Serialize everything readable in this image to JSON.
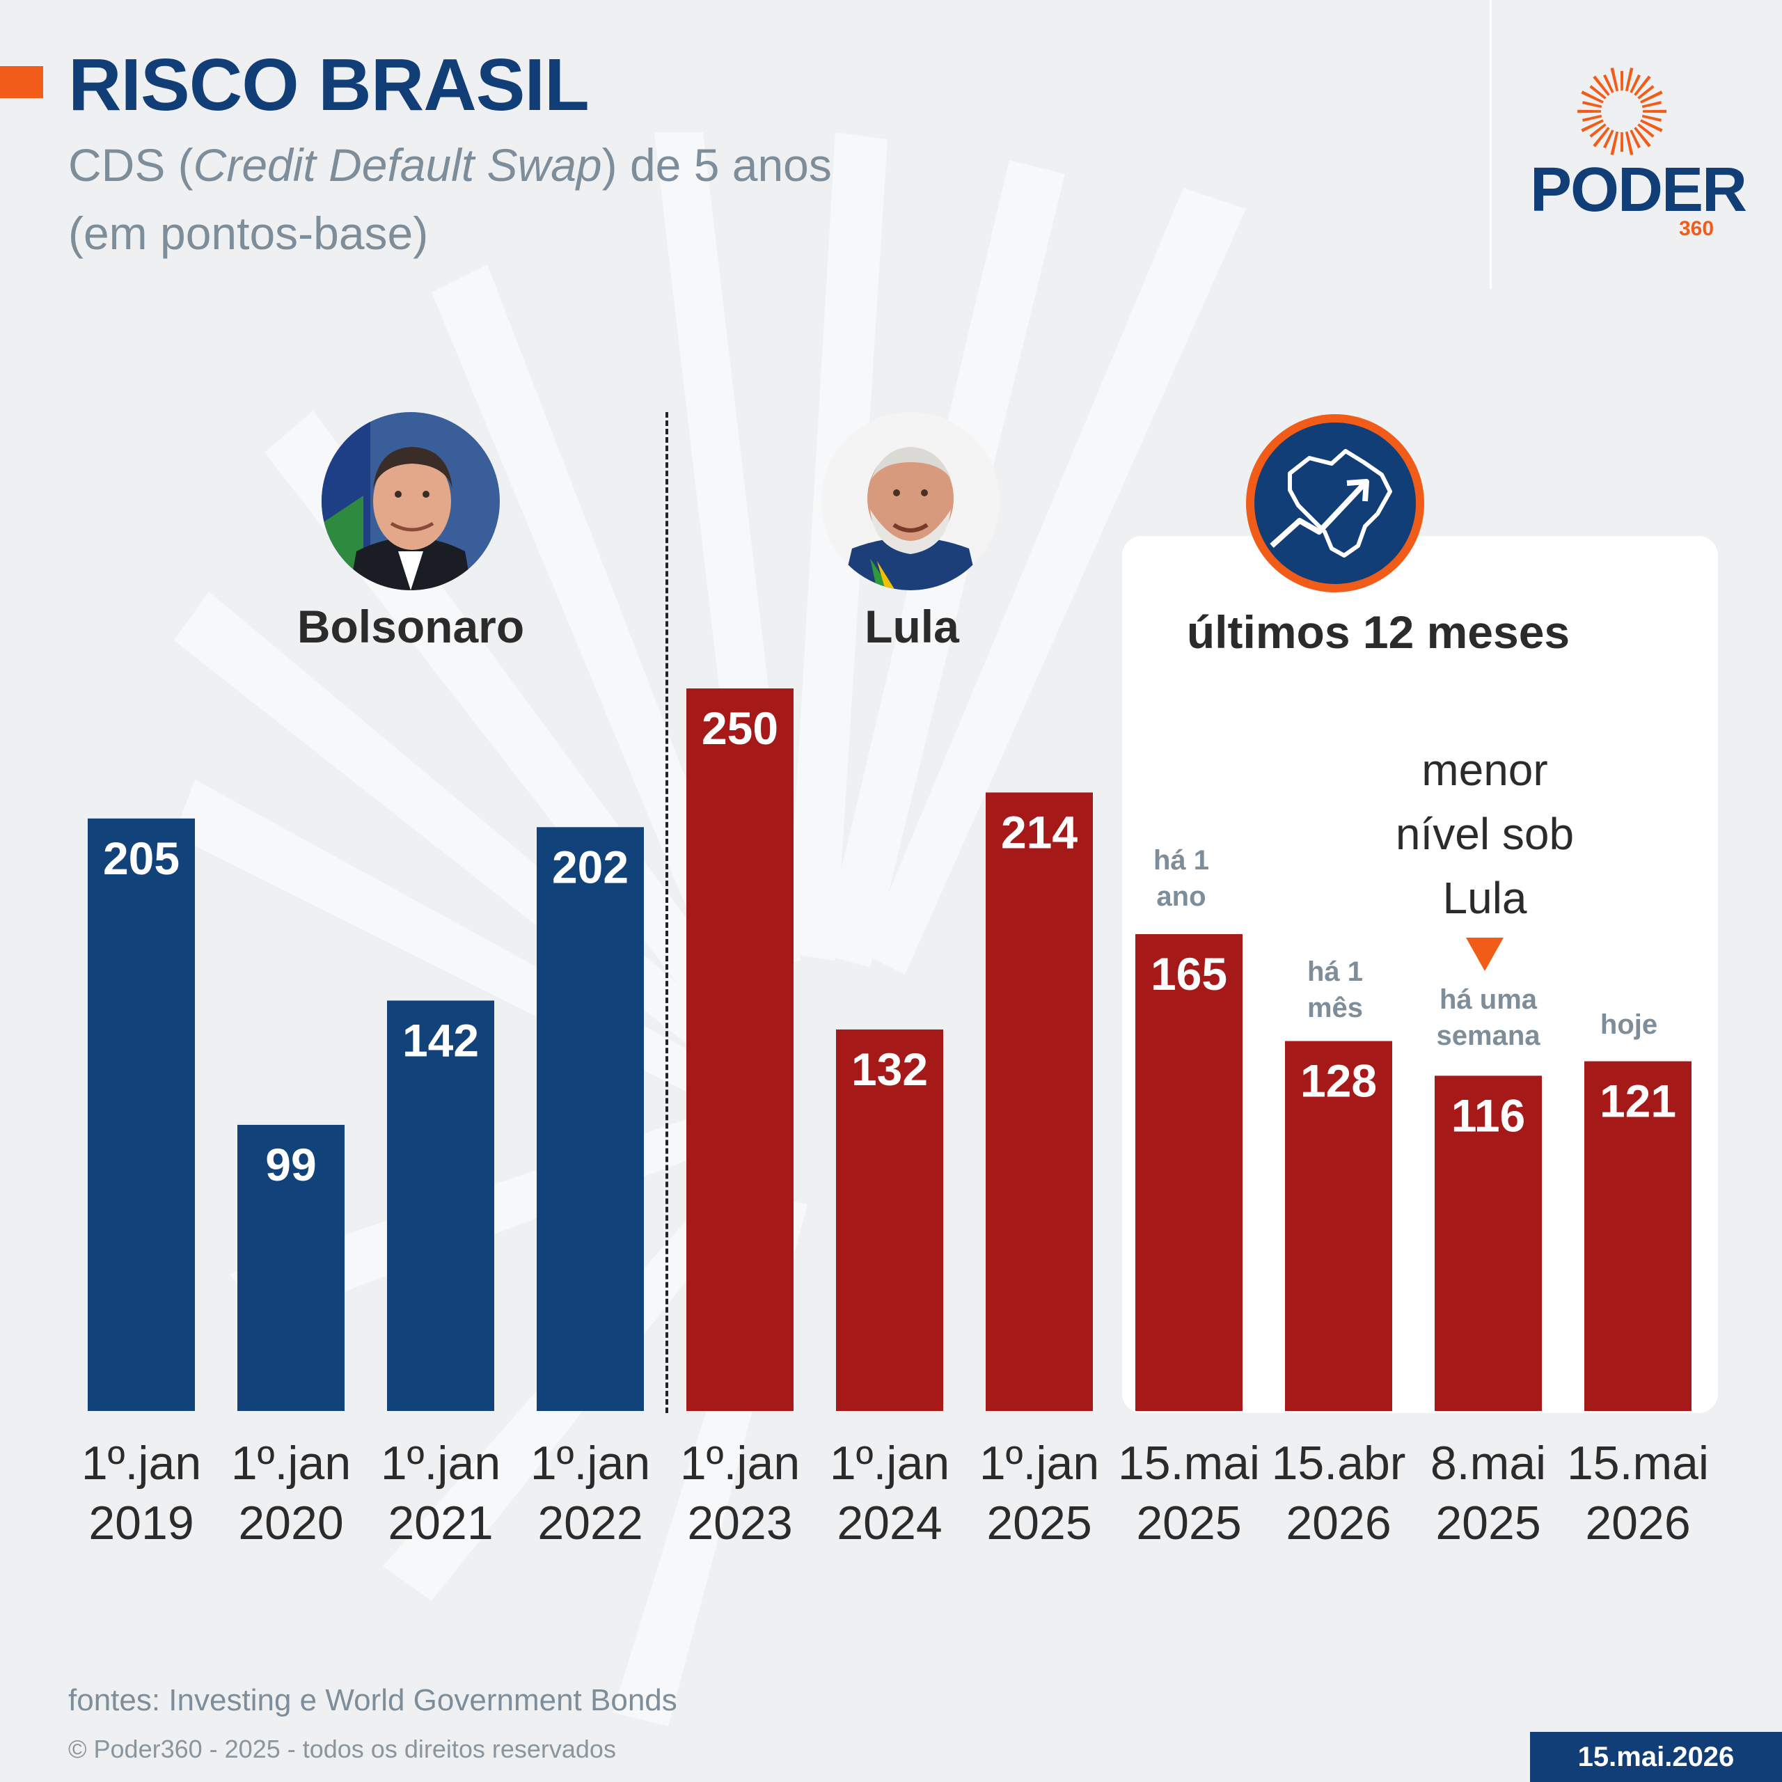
{
  "header": {
    "title": "RISCO BRASIL",
    "subtitle_pre": "CDS (",
    "subtitle_italic": "Credit Default Swap",
    "subtitle_post": ") de 5 anos",
    "subtitle_line2": "(em pontos-base)"
  },
  "logo": {
    "word": "PODER",
    "number": "360",
    "icon": "sun-burst-logo-icon"
  },
  "periods": {
    "bolsonaro": "Bolsonaro",
    "lula": "Lula",
    "recent": "últimos 12 meses",
    "recent_icon": "brazil-map-rising-arrow-icon"
  },
  "notes": {
    "ha_1_ano": [
      "há 1",
      "ano"
    ],
    "ha_1_mes": [
      "há 1",
      "mês"
    ],
    "ha_uma_semana": [
      "há uma",
      "semana"
    ],
    "hoje": "hoje",
    "lowest": [
      "menor",
      "nível sob",
      "Lula"
    ]
  },
  "chart_data": {
    "type": "bar",
    "categories": [
      [
        "1º.jan",
        "2019"
      ],
      [
        "1º.jan",
        "2020"
      ],
      [
        "1º.jan",
        "2021"
      ],
      [
        "1º.jan",
        "2022"
      ],
      [
        "1º.jan",
        "2023"
      ],
      [
        "1º.jan",
        "2024"
      ],
      [
        "1º.jan",
        "2025"
      ],
      [
        "15.mai",
        "2025"
      ],
      [
        "15.abr",
        "2026"
      ],
      [
        "8.mai",
        "2025"
      ],
      [
        "15.mai",
        "2026"
      ]
    ],
    "values": [
      205,
      99,
      142,
      202,
      250,
      132,
      214,
      165,
      128,
      116,
      121
    ],
    "groups": [
      "Bolsonaro",
      "Bolsonaro",
      "Bolsonaro",
      "Bolsonaro",
      "Lula",
      "Lula",
      "Lula",
      "Lula",
      "Lula",
      "Lula",
      "Lula"
    ],
    "colors": {
      "Bolsonaro": "#12427a",
      "Lula": "#a61919",
      "accent": "#f25c19"
    },
    "ylim": [
      0,
      250
    ],
    "grid": false,
    "legend": "none"
  },
  "footer": {
    "source": "fontes: Investing e World Government Bonds",
    "copyright": "© Poder360 - 2025 - todos os direitos reservados",
    "date": "15.mai.2026"
  }
}
